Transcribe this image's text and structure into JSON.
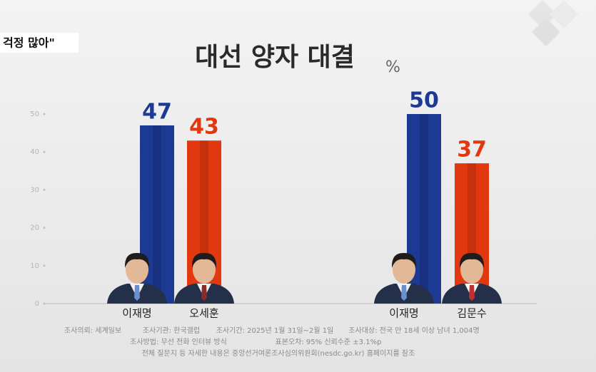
{
  "headline_fragment": "걱정 많아\"",
  "chart_data": {
    "type": "bar",
    "title": "대선 양자 대결",
    "unit": "%",
    "categories": [
      "이재명",
      "오세훈",
      "이재명",
      "김문수"
    ],
    "values": [
      47,
      43,
      50,
      37
    ],
    "colors": [
      "#1c3a93",
      "#e2380f",
      "#1c3a93",
      "#e2380f"
    ],
    "ylim": [
      0,
      50
    ],
    "yticks": [
      0,
      10,
      20,
      30,
      40,
      50
    ]
  },
  "notes": [
    [
      "조사의뢰: 세계일보",
      "조사기관: 한국갤럽",
      "조사기간: 2025년 1월 31일~2월 1일",
      "조사대상: 전국 만 18세 이상 남녀 1,004명"
    ],
    [
      "조사방법: 무선 전화 인터뷰 방식",
      "표본오차: 95% 신뢰수준 ±3.1%p"
    ],
    [
      "전체 질문지 등 자세한 내용은 중앙선거여론조사심의위원회(nesdc.go.kr) 홈페이지를 참조"
    ]
  ]
}
